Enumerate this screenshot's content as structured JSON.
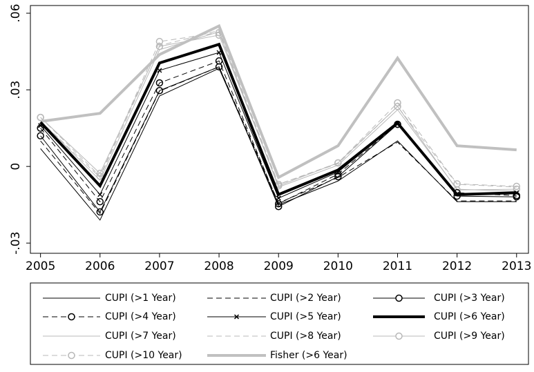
{
  "chart_data": {
    "type": "line",
    "x": [
      2005,
      2006,
      2007,
      2008,
      2009,
      2010,
      2011,
      2012,
      2013
    ],
    "xlim": [
      2004.83,
      2013.2
    ],
    "xticks": [
      2005,
      2006,
      2007,
      2008,
      2009,
      2010,
      2011,
      2012,
      2013
    ],
    "ylim": [
      -0.034,
      0.063
    ],
    "yticks": [
      {
        "value": -0.03,
        "label": "-.03"
      },
      {
        "value": 0,
        "label": "0"
      },
      {
        "value": 0.03,
        "label": ".03"
      },
      {
        "value": 0.06,
        "label": ".06"
      }
    ],
    "series": [
      {
        "name": "CUPI (>1 Year)",
        "color": "#000000",
        "dash": "solid",
        "marker": "none",
        "line_width": 1,
        "values": [
          0.007,
          -0.021,
          0.0276,
          0.0384,
          -0.015,
          -0.0057,
          0.01,
          -0.0138,
          -0.0138
        ]
      },
      {
        "name": "CUPI (>2 Year)",
        "color": "#000000",
        "dash": "dashed",
        "marker": "none",
        "line_width": 1,
        "values": [
          0.01,
          -0.0184,
          0.0295,
          0.039,
          -0.0143,
          -0.0043,
          0.0095,
          -0.0135,
          -0.0135
        ]
      },
      {
        "name": "CUPI (>3 Year)",
        "color": "#000000",
        "dash": "solid",
        "marker": "circle",
        "line_width": 1,
        "values": [
          0.012,
          -0.0178,
          0.0297,
          0.039,
          -0.0157,
          -0.004,
          0.0165,
          -0.0116,
          -0.0119
        ]
      },
      {
        "name": "CUPI (>4 Year)",
        "color": "#000000",
        "dash": "dashed",
        "marker": "circle",
        "line_width": 1,
        "values": [
          0.015,
          -0.0138,
          0.0327,
          0.0413,
          -0.0146,
          -0.003,
          0.0165,
          -0.0103,
          -0.0114
        ]
      },
      {
        "name": "CUPI (>5 Year)",
        "color": "#000000",
        "dash": "solid",
        "marker": "x",
        "line_width": 1,
        "values": [
          0.016,
          -0.011,
          0.0376,
          0.0446,
          -0.0124,
          -0.0022,
          0.0168,
          -0.0108,
          -0.0103
        ]
      },
      {
        "name": "CUPI (>6 Year)",
        "color": "#000000",
        "dash": "solid",
        "marker": "none",
        "line_width": 4,
        "values": [
          0.0173,
          -0.0076,
          0.0405,
          0.0478,
          -0.011,
          -0.0014,
          0.017,
          -0.011,
          -0.0103
        ]
      },
      {
        "name": "CUPI (>7 Year)",
        "color": "#b8b8b8",
        "dash": "solid",
        "marker": "none",
        "line_width": 1,
        "values": [
          0.0178,
          -0.0054,
          0.0457,
          0.0527,
          -0.0081,
          0.0005,
          0.0222,
          -0.0089,
          -0.0097
        ]
      },
      {
        "name": "CUPI (>8 Year)",
        "color": "#b8b8b8",
        "dash": "dashed",
        "marker": "none",
        "line_width": 1,
        "values": [
          0.0178,
          -0.0043,
          0.0473,
          0.0532,
          -0.007,
          0.0011,
          0.0235,
          -0.007,
          -0.0081
        ]
      },
      {
        "name": "CUPI (>9 Year)",
        "color": "#b8b8b8",
        "dash": "solid",
        "marker": "circle",
        "line_width": 1,
        "values": [
          0.0192,
          -0.0027,
          0.047,
          0.0514,
          -0.0076,
          0.0014,
          0.0235,
          -0.0092,
          -0.0089
        ]
      },
      {
        "name": "CUPI (>10 Year)",
        "color": "#b8b8b8",
        "dash": "dashed",
        "marker": "circle",
        "line_width": 1,
        "values": [
          0.0192,
          -0.0038,
          0.0489,
          0.0524,
          -0.007,
          0.0014,
          0.0249,
          -0.0068,
          -0.0078
        ]
      },
      {
        "name": "Fisher (>6 Year)",
        "color": "#c0c0c0",
        "dash": "solid",
        "marker": "none",
        "line_width": 4,
        "values": [
          0.0176,
          0.0208,
          0.0438,
          0.055,
          -0.0043,
          0.0081,
          0.0424,
          0.0081,
          0.0065
        ]
      }
    ]
  }
}
